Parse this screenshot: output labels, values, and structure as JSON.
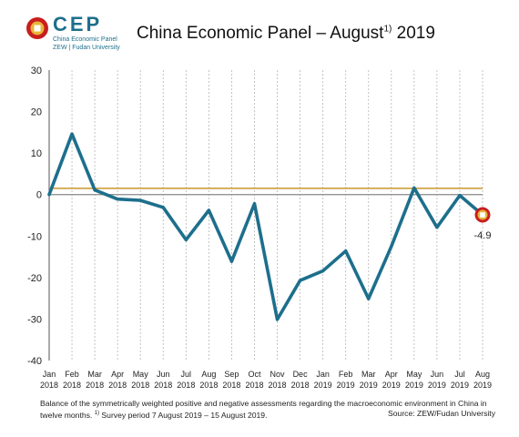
{
  "header": {
    "logo_text": "CEP",
    "logo_sub1": "China Economic Panel",
    "logo_sub2": "ZEW | Fudan University",
    "title_main": "China Economic Panel – August",
    "title_sup": "1)",
    "title_year": " 2019"
  },
  "footer": {
    "line1": "Balance of the symmetrically weighted positive and negative assessments regarding the macroeconomic environment in China in",
    "line2_a": "twelve months. ",
    "line2_sup": "1)",
    "line2_b": " Survey period 7 August 2019 – 15 August 2019.",
    "source": "Source: ZEW/Fudan University"
  },
  "chart_data": {
    "type": "line",
    "categories": [
      [
        "Jan",
        "2018"
      ],
      [
        "Feb",
        "2018"
      ],
      [
        "Mar",
        "2018"
      ],
      [
        "Apr",
        "2018"
      ],
      [
        "May",
        "2018"
      ],
      [
        "Jun",
        "2018"
      ],
      [
        "Jul",
        "2018"
      ],
      [
        "Aug",
        "2018"
      ],
      [
        "Sep",
        "2018"
      ],
      [
        "Oct",
        "2018"
      ],
      [
        "Nov",
        "2018"
      ],
      [
        "Dec",
        "2018"
      ],
      [
        "Jan",
        "2019"
      ],
      [
        "Feb",
        "2019"
      ],
      [
        "Mar",
        "2019"
      ],
      [
        "Apr",
        "2019"
      ],
      [
        "May",
        "2019"
      ],
      [
        "Jun",
        "2019"
      ],
      [
        "Jul",
        "2019"
      ],
      [
        "Aug",
        "2019"
      ]
    ],
    "series": [
      {
        "values": [
          0.0,
          14.6,
          1.1,
          -1.1,
          -1.4,
          -3.1,
          -10.9,
          -3.8,
          -16.1,
          -2.2,
          -30.1,
          -20.7,
          -18.4,
          -13.6,
          -25.1,
          -12.5,
          1.6,
          -7.9,
          -0.2,
          -4.9
        ],
        "color": "#1d6f8c"
      }
    ],
    "reference_line": {
      "value": 1.5,
      "color": "#c8962a"
    },
    "zero_line_color": "#888888",
    "last_label": "-4.9",
    "last_marker_color": "#c81e1e",
    "ylim": [
      -40,
      30
    ],
    "yticks": [
      30,
      20,
      10,
      0,
      -10,
      -20,
      -30,
      -40
    ],
    "ytick_labels": [
      "30",
      "20",
      "10",
      "0",
      "-10",
      "-20",
      "-30",
      "-40"
    ],
    "grid": "vertical dashed"
  }
}
